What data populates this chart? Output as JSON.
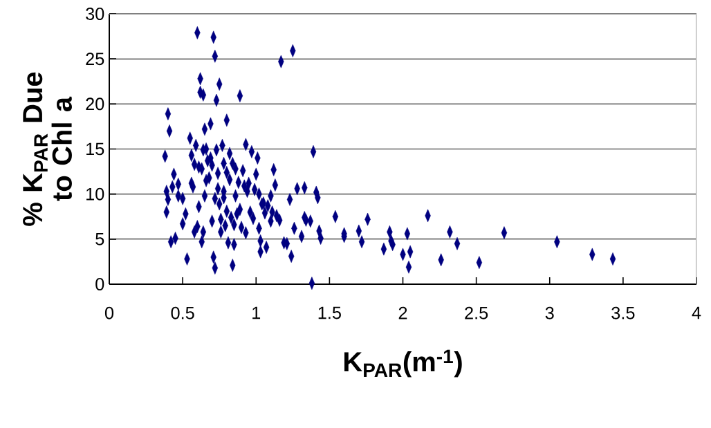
{
  "chart_data": {
    "type": "scatter",
    "xlabel": "K$_{PAR}$(m$^{-1}$)",
    "ylabel": "% K$_{PAR}$ Due to Chl a",
    "color": "#000080",
    "marker": "diamond",
    "grid": "y",
    "xlim": [
      0,
      4
    ],
    "ylim": [
      0,
      30
    ],
    "xticks": [
      0,
      0.5,
      1,
      1.5,
      2,
      2.5,
      3,
      3.5,
      4
    ],
    "yticks": [
      0,
      5,
      10,
      15,
      20,
      25,
      30
    ],
    "x": [
      0.38,
      0.4,
      0.41,
      0.39,
      0.4,
      0.39,
      0.43,
      0.44,
      0.42,
      0.45,
      0.47,
      0.47,
      0.5,
      0.5,
      0.52,
      0.53,
      0.55,
      0.56,
      0.56,
      0.57,
      0.58,
      0.59,
      0.58,
      0.6,
      0.61,
      0.62,
      0.62,
      0.61,
      0.6,
      0.63,
      0.64,
      0.64,
      0.65,
      0.66,
      0.66,
      0.65,
      0.64,
      0.63,
      0.67,
      0.68,
      0.69,
      0.69,
      0.7,
      0.7,
      0.71,
      0.72,
      0.72,
      0.71,
      0.72,
      0.73,
      0.73,
      0.74,
      0.74,
      0.75,
      0.75,
      0.76,
      0.76,
      0.77,
      0.78,
      0.78,
      0.78,
      0.79,
      0.8,
      0.8,
      0.8,
      0.81,
      0.82,
      0.82,
      0.83,
      0.84,
      0.84,
      0.85,
      0.85,
      0.86,
      0.86,
      0.87,
      0.88,
      0.89,
      0.89,
      0.9,
      0.91,
      0.92,
      0.93,
      0.93,
      0.94,
      0.95,
      0.96,
      0.97,
      0.98,
      0.99,
      1.0,
      1.01,
      1.02,
      1.02,
      1.03,
      1.03,
      1.04,
      1.05,
      1.06,
      1.07,
      1.08,
      1.1,
      1.1,
      1.11,
      1.12,
      1.13,
      1.14,
      1.16,
      1.17,
      1.19,
      1.21,
      1.23,
      1.24,
      1.25,
      1.26,
      1.28,
      1.31,
      1.33,
      1.33,
      1.34,
      1.37,
      1.38,
      1.39,
      1.41,
      1.42,
      1.43,
      1.44,
      1.54,
      1.6,
      1.6,
      1.7,
      1.72,
      1.76,
      1.87,
      1.91,
      1.93,
      1.92,
      2.0,
      2.03,
      2.05,
      2.04,
      2.17,
      2.26,
      2.32,
      2.37,
      2.52,
      2.69,
      3.05,
      3.29,
      3.43
    ],
    "values": [
      14.2,
      18.9,
      17,
      10.3,
      9.4,
      8,
      10.8,
      12.2,
      4.7,
      5.1,
      11.1,
      9.8,
      9.5,
      6.7,
      7.8,
      2.8,
      16.2,
      14.3,
      11.2,
      10.8,
      13.3,
      15.4,
      5.8,
      27.9,
      13,
      22.8,
      21.3,
      8.6,
      6.4,
      12.8,
      21,
      14.9,
      17.2,
      15,
      11.5,
      9.8,
      5.8,
      4.7,
      13.7,
      11.8,
      17.8,
      14,
      13.2,
      7,
      27.4,
      25.3,
      9.5,
      3,
      1.8,
      20.4,
      14.9,
      12.3,
      10.6,
      22.2,
      8.9,
      7.2,
      5.8,
      15.4,
      13.4,
      10.3,
      9.6,
      6.5,
      18.2,
      12.4,
      8.1,
      4.6,
      14.5,
      11.6,
      7.4,
      13.4,
      2.1,
      6.6,
      4.4,
      12.8,
      9.8,
      7.8,
      11.3,
      20.9,
      8.3,
      6.3,
      12.6,
      10.9,
      15.5,
      5.7,
      10.3,
      11.2,
      8,
      14.7,
      7.3,
      10.5,
      12.2,
      14,
      10,
      6.2,
      4.8,
      3.6,
      8.9,
      9,
      7.9,
      4.1,
      8.7,
      9.8,
      7,
      8,
      12.7,
      11,
      7.6,
      7.1,
      24.7,
      4.6,
      4.5,
      9.4,
      3.1,
      25.9,
      6.2,
      10.6,
      5.3,
      10.7,
      7.4,
      7.1,
      7,
      0.1,
      14.7,
      10.2,
      9.6,
      5.9,
      5.1,
      7.5,
      5.6,
      5.3,
      5.9,
      4.7,
      7.2,
      3.9,
      5.8,
      4.4,
      4.8,
      3.3,
      5.6,
      3.6,
      1.9,
      7.6,
      2.7,
      5.8,
      4.5,
      2.4,
      5.7,
      4.7,
      3.3,
      2.8
    ]
  }
}
